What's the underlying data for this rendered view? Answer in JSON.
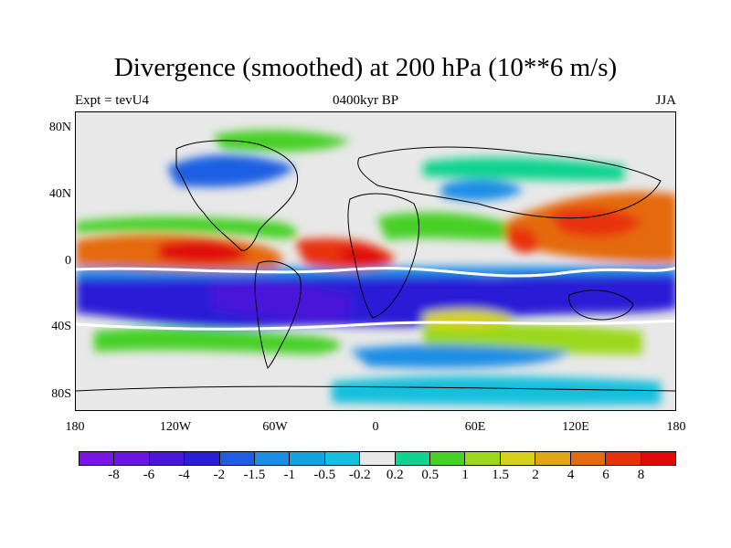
{
  "title": "Divergence (smoothed) at 200 hPa (10**6 m/s)",
  "left_label": "Expt = tevU4",
  "center_label": "0400kyr BP",
  "right_label": "JJA",
  "lat_labels": [
    "80N",
    "40N",
    "0",
    "40S",
    "80S"
  ],
  "lon_labels": [
    "180",
    "120W",
    "60W",
    "0",
    "60E",
    "120E",
    "180"
  ],
  "colorbar": {
    "labels": [
      "-8",
      "-6",
      "-4",
      "-2",
      "-1.5",
      "-1",
      "-0.5",
      "-0.2",
      "0.2",
      "0.5",
      "1",
      "1.5",
      "2",
      "4",
      "6",
      "8"
    ],
    "colors": [
      "#7b14e6",
      "#6a16e0",
      "#4a17d9",
      "#2a1fd6",
      "#1f5ee3",
      "#1d8ee6",
      "#13a3e0",
      "#16c0dd",
      "#e8e8e8",
      "#11d38f",
      "#47d026",
      "#9bd81c",
      "#d6d21a",
      "#e0a615",
      "#e46a10",
      "#e8300c",
      "#e00a0a"
    ]
  }
}
